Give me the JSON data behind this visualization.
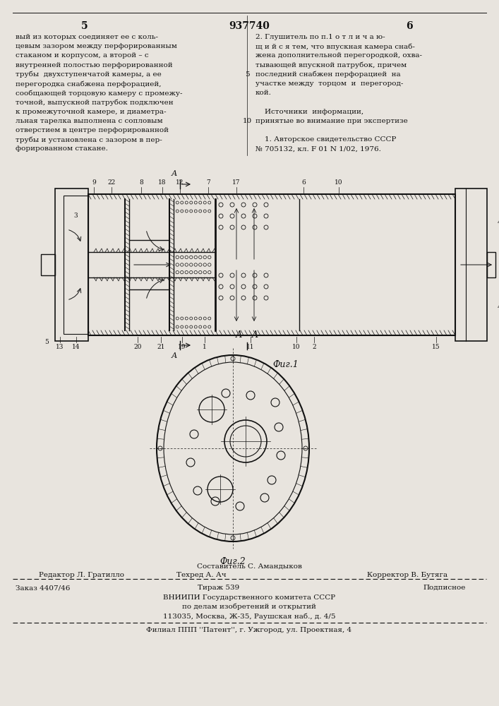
{
  "page_width": 7.07,
  "page_height": 10.0,
  "bg_color": "#e8e4de",
  "header_left_num": "5",
  "header_center_num": "937740",
  "header_right_num": "6",
  "col1_lines": [
    "вый из которых соединяет ее с коль-",
    "цевым зазором между перфорированным",
    "стаканом и корпусом, а второй – с",
    "внутренней полостью перфорированной",
    "трубы  двухступенчатой камеры, а ее",
    "перегородка снабжена перфорацией,",
    "сообщающей торцовую камеру с промежу-",
    "точной, выпускной патрубок подключен",
    "к промежуточной камере, и диаметра-",
    "льная тарелка выполнена с сопловым",
    "отверстием в центре перфорированной",
    "трубы и установлена с зазором в пер-",
    "форированном стакане."
  ],
  "col2_lines": [
    "2. Глушитель по п.1 о т л и ч а ю-",
    "щ и й с я тем, что впускная камера снаб-",
    "жена дополнительной перегородкой, охва-",
    "тывающей впускной патрубок, причем",
    "последний снабжен перфорацией  на",
    "участке между  торцом  и  перегород-",
    "кой.",
    "",
    "    Источники  информации,",
    "принятые во внимание при экспертизе",
    "",
    "    1. Авторское свидетельство СССР",
    "№ 705132, кл. F 01 N 1/02, 1976."
  ],
  "linenum_5_row": 4,
  "linenum_10_row": 9,
  "fig1_label": "Фиг.1",
  "fig2_label": "Фиг.2",
  "aa_label": "А – А",
  "footer_sestavitel": "Составитель С. Амандыков",
  "footer_redaktor": "Редактор Л. Гратилло",
  "footer_tehred": "Техред А. Ач",
  "footer_korrektor": "Корректор В. Бутяга",
  "footer_zakaz": "Заказ 4407/46",
  "footer_tirazh": "Тираж 539",
  "footer_podpisnoe": "Подписное",
  "footer_org1": "ВНИИПИ Государственного комитета СССР",
  "footer_org2": "по делам изобретений и открытий",
  "footer_org3": "113035, Москва, Ж-35, Раушская наб., д. 4/5",
  "footer_filial": "Филиал ППП ''Патент'', г. Ужгород, ул. Проектная, 4",
  "tc": "#111111",
  "lc": "#111111"
}
